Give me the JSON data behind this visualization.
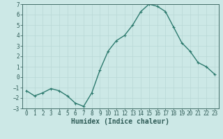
{
  "x": [
    0,
    1,
    2,
    3,
    4,
    5,
    6,
    7,
    8,
    9,
    10,
    11,
    12,
    13,
    14,
    15,
    16,
    17,
    18,
    19,
    20,
    21,
    22,
    23
  ],
  "y": [
    -1.3,
    -1.8,
    -1.5,
    -1.1,
    -1.3,
    -1.8,
    -2.5,
    -2.8,
    -1.5,
    0.7,
    2.5,
    3.5,
    4.0,
    5.0,
    6.3,
    7.0,
    6.8,
    6.3,
    4.8,
    3.3,
    2.5,
    1.4,
    1.0,
    0.3
  ],
  "line_color": "#2d7a6e",
  "marker": "+",
  "marker_size": 3,
  "linewidth": 1.0,
  "xlabel": "Humidex (Indice chaleur)",
  "ylim": [
    -3,
    7
  ],
  "yticks": [
    -3,
    -2,
    -1,
    0,
    1,
    2,
    3,
    4,
    5,
    6,
    7
  ],
  "xticks": [
    0,
    1,
    2,
    3,
    4,
    5,
    6,
    7,
    8,
    9,
    10,
    11,
    12,
    13,
    14,
    15,
    16,
    17,
    18,
    19,
    20,
    21,
    22,
    23
  ],
  "background_color": "#cce8e6",
  "grid_color": "#b8d8d6",
  "xlabel_fontsize": 7,
  "tick_fontsize": 5.5,
  "tick_color": "#2d5a55",
  "spine_color": "#2d5a55"
}
